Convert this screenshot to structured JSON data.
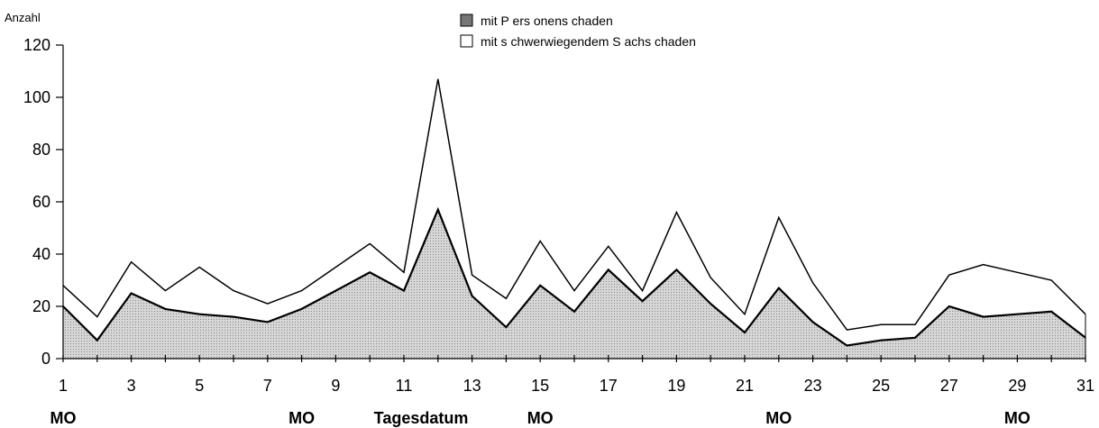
{
  "chart_data": {
    "type": "area",
    "ylabel": "Anzahl",
    "xlabel": "Tagesdatum",
    "ylim": [
      0,
      120
    ],
    "yticks": [
      0,
      20,
      40,
      60,
      80,
      100,
      120
    ],
    "x": [
      1,
      2,
      3,
      4,
      5,
      6,
      7,
      8,
      9,
      10,
      11,
      12,
      13,
      14,
      15,
      16,
      17,
      18,
      19,
      20,
      21,
      22,
      23,
      24,
      25,
      26,
      27,
      28,
      29,
      30,
      31
    ],
    "xtick_labels": [
      1,
      3,
      5,
      7,
      9,
      11,
      13,
      15,
      17,
      19,
      21,
      23,
      25,
      27,
      29,
      31
    ],
    "series": [
      {
        "name": "mit P ers onens chaden",
        "color": "#c8c8c8",
        "values": [
          20,
          7,
          25,
          19,
          17,
          16,
          14,
          19,
          26,
          33,
          26,
          57,
          24,
          12,
          28,
          18,
          34,
          22,
          34,
          21,
          10,
          27,
          14,
          5,
          7,
          8,
          20,
          16,
          17,
          18,
          8
        ]
      },
      {
        "name": "mit s chwerwiegendem S achs chaden",
        "color": "#ffffff",
        "values": [
          28,
          16,
          37,
          26,
          35,
          26,
          21,
          26,
          35,
          44,
          33,
          107,
          32,
          23,
          45,
          26,
          43,
          26,
          56,
          31,
          17,
          54,
          29,
          11,
          13,
          13,
          32,
          36,
          33,
          30,
          17
        ]
      }
    ],
    "weekday_markers": [
      {
        "day": 1,
        "label": "MO"
      },
      {
        "day": 8,
        "label": "MO"
      },
      {
        "day": 15,
        "label": "MO"
      },
      {
        "day": 22,
        "label": "MO"
      },
      {
        "day": 29,
        "label": "MO"
      }
    ],
    "legend_position": "top-center"
  }
}
